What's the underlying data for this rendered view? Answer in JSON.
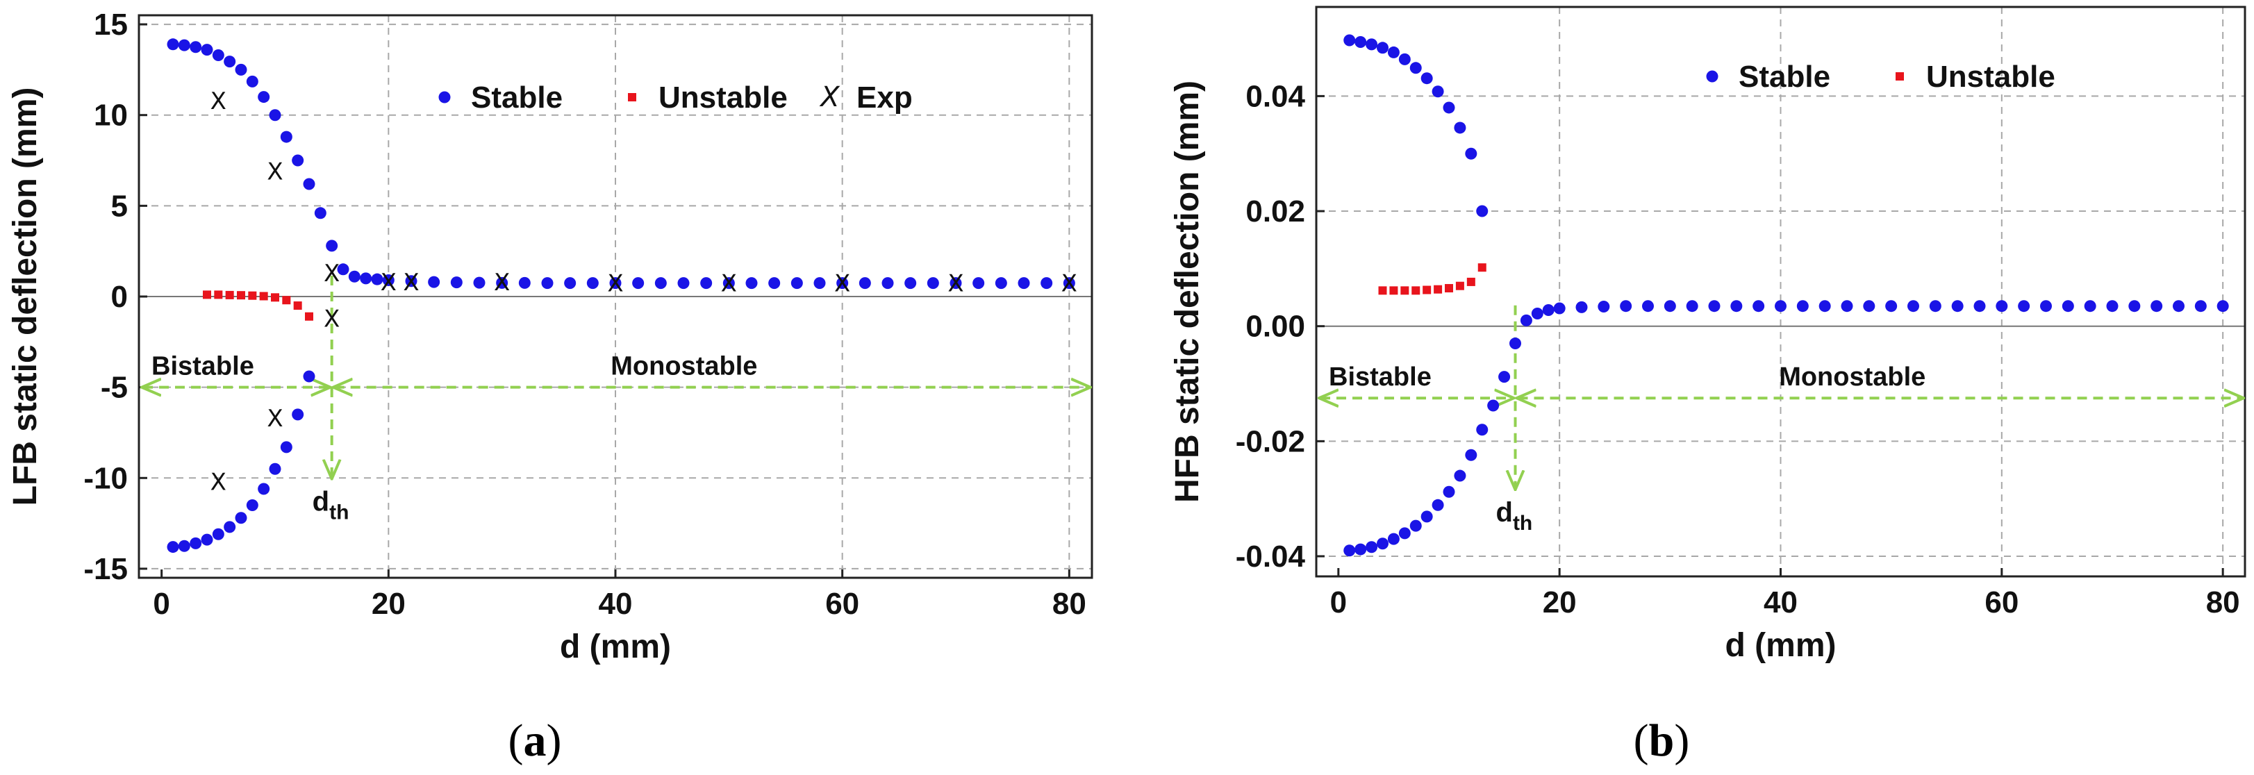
{
  "chart_data": [
    {
      "id": "a",
      "type": "scatter",
      "panel_label": "a",
      "xlabel": "d (mm)",
      "ylabel": "LFB static deflection (mm)",
      "xlim": [
        -2,
        82
      ],
      "ylim": [
        -15.5,
        15.5
      ],
      "xticks": [
        0,
        20,
        40,
        60,
        80
      ],
      "yticks": [
        15,
        10,
        5,
        0,
        -5,
        -10,
        -15
      ],
      "grid": true,
      "legend": {
        "position": "top-right",
        "entries": [
          "Stable",
          "Unstable",
          "Exp"
        ]
      },
      "series": [
        {
          "name": "Stable",
          "marker": "circle",
          "color": "#1a14e6",
          "points": [
            [
              1,
              13.9
            ],
            [
              2,
              13.85
            ],
            [
              3,
              13.75
            ],
            [
              4,
              13.6
            ],
            [
              5,
              13.3
            ],
            [
              6,
              12.95
            ],
            [
              7,
              12.5
            ],
            [
              8,
              11.85
            ],
            [
              9,
              11.0
            ],
            [
              10,
              10.0
            ],
            [
              11,
              8.8
            ],
            [
              12,
              7.5
            ],
            [
              13,
              6.2
            ],
            [
              14,
              4.6
            ],
            [
              15,
              2.8
            ],
            [
              16,
              1.5
            ],
            [
              17,
              1.1
            ],
            [
              18,
              1.0
            ],
            [
              19,
              0.95
            ],
            [
              20,
              0.9
            ],
            [
              22,
              0.85
            ],
            [
              24,
              0.8
            ],
            [
              26,
              0.78
            ],
            [
              28,
              0.76
            ],
            [
              30,
              0.75
            ],
            [
              32,
              0.75
            ],
            [
              34,
              0.74
            ],
            [
              36,
              0.74
            ],
            [
              38,
              0.74
            ],
            [
              40,
              0.74
            ],
            [
              42,
              0.74
            ],
            [
              44,
              0.74
            ],
            [
              46,
              0.74
            ],
            [
              48,
              0.74
            ],
            [
              50,
              0.74
            ],
            [
              52,
              0.74
            ],
            [
              54,
              0.74
            ],
            [
              56,
              0.74
            ],
            [
              58,
              0.74
            ],
            [
              60,
              0.74
            ],
            [
              62,
              0.74
            ],
            [
              64,
              0.74
            ],
            [
              66,
              0.74
            ],
            [
              68,
              0.74
            ],
            [
              70,
              0.74
            ],
            [
              72,
              0.74
            ],
            [
              74,
              0.74
            ],
            [
              76,
              0.74
            ],
            [
              78,
              0.74
            ],
            [
              80,
              0.74
            ],
            [
              1,
              -13.8
            ],
            [
              2,
              -13.75
            ],
            [
              3,
              -13.6
            ],
            [
              4,
              -13.4
            ],
            [
              5,
              -13.1
            ],
            [
              6,
              -12.7
            ],
            [
              7,
              -12.2
            ],
            [
              8,
              -11.5
            ],
            [
              9,
              -10.6
            ],
            [
              10,
              -9.5
            ],
            [
              11,
              -8.3
            ],
            [
              12,
              -6.5
            ],
            [
              13,
              -4.4
            ]
          ]
        },
        {
          "name": "Unstable",
          "marker": "square",
          "color": "#e8141c",
          "points": [
            [
              4,
              0.1
            ],
            [
              5,
              0.1
            ],
            [
              6,
              0.08
            ],
            [
              7,
              0.07
            ],
            [
              8,
              0.05
            ],
            [
              9,
              0.02
            ],
            [
              10,
              -0.05
            ],
            [
              11,
              -0.2
            ],
            [
              12,
              -0.5
            ],
            [
              13,
              -1.1
            ]
          ]
        },
        {
          "name": "Exp",
          "marker": "cross",
          "color": "#111111",
          "points": [
            [
              5,
              10.8
            ],
            [
              10,
              6.9
            ],
            [
              15,
              1.3
            ],
            [
              15,
              -1.2
            ],
            [
              10,
              -6.7
            ],
            [
              5,
              -10.2
            ],
            [
              20,
              0.8
            ],
            [
              22,
              0.8
            ],
            [
              30,
              0.8
            ],
            [
              40,
              0.75
            ],
            [
              50,
              0.75
            ],
            [
              60,
              0.75
            ],
            [
              70,
              0.75
            ],
            [
              80,
              0.75
            ]
          ]
        }
      ],
      "annotations": {
        "bistable_label": "Bistable",
        "monostable_label": "Monostable",
        "threshold_label": "d",
        "threshold_sub": "th",
        "threshold_x": 15,
        "arrow_y": -5
      }
    },
    {
      "id": "b",
      "type": "scatter",
      "panel_label": "b",
      "xlabel": "d (mm)",
      "ylabel": "HFB static deflection (mm)",
      "xlim": [
        -2,
        82
      ],
      "ylim": [
        -0.0435,
        0.0555
      ],
      "xticks": [
        0,
        20,
        40,
        60,
        80
      ],
      "yticks": [
        0.04,
        0.02,
        0.0,
        -0.02,
        -0.04
      ],
      "ytick_labels": [
        "0.04",
        "0.02",
        "0.00",
        "-0.02",
        "-0.04"
      ],
      "grid": true,
      "legend": {
        "position": "top-right",
        "entries": [
          "Stable",
          "Unstable"
        ]
      },
      "series": [
        {
          "name": "Stable",
          "marker": "circle",
          "color": "#1a14e6",
          "points": [
            [
              1,
              0.0497
            ],
            [
              2,
              0.0494
            ],
            [
              3,
              0.049
            ],
            [
              4,
              0.0484
            ],
            [
              5,
              0.0476
            ],
            [
              6,
              0.0464
            ],
            [
              7,
              0.0449
            ],
            [
              8,
              0.0431
            ],
            [
              9,
              0.0408
            ],
            [
              10,
              0.038
            ],
            [
              11,
              0.0345
            ],
            [
              12,
              0.03
            ],
            [
              13,
              0.02
            ],
            [
              1,
              -0.039
            ],
            [
              2,
              -0.0388
            ],
            [
              3,
              -0.0384
            ],
            [
              4,
              -0.0378
            ],
            [
              5,
              -0.037
            ],
            [
              6,
              -0.036
            ],
            [
              7,
              -0.0347
            ],
            [
              8,
              -0.0331
            ],
            [
              9,
              -0.0311
            ],
            [
              10,
              -0.0288
            ],
            [
              11,
              -0.026
            ],
            [
              12,
              -0.0224
            ],
            [
              13,
              -0.018
            ],
            [
              14,
              -0.0138
            ],
            [
              15,
              -0.0088
            ],
            [
              16,
              -0.003
            ],
            [
              17,
              0.001
            ],
            [
              18,
              0.0022
            ],
            [
              19,
              0.0028
            ],
            [
              20,
              0.0031
            ],
            [
              22,
              0.0033
            ],
            [
              24,
              0.0034
            ],
            [
              26,
              0.0035
            ],
            [
              28,
              0.0035
            ],
            [
              30,
              0.0035
            ],
            [
              32,
              0.0035
            ],
            [
              34,
              0.0035
            ],
            [
              36,
              0.0035
            ],
            [
              38,
              0.0035
            ],
            [
              40,
              0.0035
            ],
            [
              42,
              0.0035
            ],
            [
              44,
              0.0035
            ],
            [
              46,
              0.0035
            ],
            [
              48,
              0.0035
            ],
            [
              50,
              0.0035
            ],
            [
              52,
              0.0035
            ],
            [
              54,
              0.0035
            ],
            [
              56,
              0.0035
            ],
            [
              58,
              0.0035
            ],
            [
              60,
              0.0035
            ],
            [
              62,
              0.0035
            ],
            [
              64,
              0.0035
            ],
            [
              66,
              0.0035
            ],
            [
              68,
              0.0035
            ],
            [
              70,
              0.0035
            ],
            [
              72,
              0.0035
            ],
            [
              74,
              0.0035
            ],
            [
              76,
              0.0035
            ],
            [
              78,
              0.0035
            ],
            [
              80,
              0.0035
            ]
          ]
        },
        {
          "name": "Unstable",
          "marker": "square",
          "color": "#e8141c",
          "points": [
            [
              4,
              0.0062
            ],
            [
              5,
              0.0062
            ],
            [
              6,
              0.0062
            ],
            [
              7,
              0.0062
            ],
            [
              8,
              0.0063
            ],
            [
              9,
              0.0064
            ],
            [
              10,
              0.0066
            ],
            [
              11,
              0.007
            ],
            [
              12,
              0.0077
            ],
            [
              13,
              0.0102
            ]
          ]
        }
      ],
      "annotations": {
        "bistable_label": "Bistable",
        "monostable_label": "Monostable",
        "threshold_label": "d",
        "threshold_sub": "th",
        "threshold_x": 16,
        "arrow_y": -0.0125
      }
    }
  ],
  "captions": {
    "a": "(a)",
    "b": "(b)"
  },
  "colors": {
    "stable": "#1a14e6",
    "unstable": "#e8141c",
    "exp": "#111111",
    "arrow": "#92d050"
  }
}
